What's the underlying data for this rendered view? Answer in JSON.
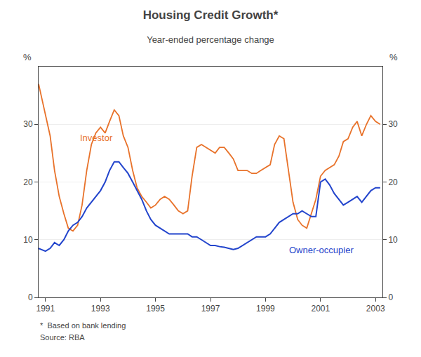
{
  "chart_data": {
    "type": "line",
    "title": "Housing Credit Growth*",
    "subtitle": "Year-ended percentage change",
    "ylabel_left": "%",
    "ylabel_right": "%",
    "footnotes": [
      "*  Based on bank lending",
      "Source: RBA"
    ],
    "x": [
      1990.75,
      1991.0,
      1991.17,
      1991.33,
      1991.5,
      1991.67,
      1991.83,
      1992.0,
      1992.17,
      1992.33,
      1992.5,
      1992.67,
      1992.83,
      1993.0,
      1993.17,
      1993.33,
      1993.5,
      1993.67,
      1993.83,
      1994.0,
      1994.17,
      1994.33,
      1994.5,
      1994.67,
      1994.83,
      1995.0,
      1995.17,
      1995.33,
      1995.5,
      1995.67,
      1995.83,
      1996.0,
      1996.17,
      1996.33,
      1996.5,
      1996.67,
      1996.83,
      1997.0,
      1997.17,
      1997.33,
      1997.5,
      1997.67,
      1997.83,
      1998.0,
      1998.17,
      1998.33,
      1998.5,
      1998.67,
      1998.83,
      1999.0,
      1999.17,
      1999.33,
      1999.5,
      1999.67,
      1999.83,
      2000.0,
      2000.17,
      2000.33,
      2000.5,
      2000.67,
      2000.83,
      2001.0,
      2001.17,
      2001.33,
      2001.5,
      2001.67,
      2001.83,
      2002.0,
      2002.17,
      2002.33,
      2002.5,
      2002.67,
      2002.83,
      2003.0,
      2003.17
    ],
    "series": [
      {
        "name": "Investor",
        "color": "#E8722A",
        "label_position": [
          1992.2,
          26.5
        ],
        "values": [
          37.0,
          31.5,
          28.0,
          22.0,
          17.5,
          14.5,
          12.0,
          11.5,
          12.5,
          16.0,
          22.0,
          26.5,
          28.5,
          29.5,
          28.5,
          30.5,
          32.5,
          31.5,
          28.0,
          26.0,
          22.0,
          19.0,
          17.5,
          16.5,
          15.5,
          16.0,
          17.0,
          17.5,
          17.0,
          16.0,
          15.0,
          14.5,
          15.0,
          21.0,
          26.0,
          26.5,
          26.0,
          25.5,
          25.0,
          26.0,
          26.0,
          25.0,
          24.0,
          22.0,
          22.0,
          22.0,
          21.5,
          21.5,
          22.0,
          22.5,
          23.0,
          26.5,
          28.0,
          27.5,
          22.0,
          16.5,
          13.5,
          12.5,
          12.0,
          14.5,
          17.0,
          21.0,
          22.0,
          22.5,
          23.0,
          24.5,
          27.0,
          27.5,
          29.5,
          30.5,
          28.0,
          30.0,
          31.5,
          30.5,
          30.0
        ]
      },
      {
        "name": "Owner-occupier",
        "color": "#2244CC",
        "label_position": [
          1999.8,
          7.0
        ],
        "values": [
          8.5,
          8.0,
          8.5,
          9.5,
          9.0,
          10.0,
          11.5,
          12.5,
          13.0,
          14.0,
          15.5,
          16.5,
          17.5,
          18.5,
          20.0,
          22.0,
          23.5,
          23.5,
          22.5,
          21.5,
          20.0,
          18.5,
          17.0,
          15.0,
          13.5,
          12.5,
          12.0,
          11.5,
          11.0,
          11.0,
          11.0,
          11.0,
          11.0,
          10.5,
          10.5,
          10.0,
          9.5,
          9.0,
          9.0,
          8.8,
          8.7,
          8.5,
          8.3,
          8.5,
          9.0,
          9.5,
          10.0,
          10.5,
          10.5,
          10.5,
          11.0,
          12.0,
          13.0,
          13.5,
          14.0,
          14.5,
          14.5,
          15.0,
          14.5,
          14.0,
          14.0,
          20.0,
          20.5,
          19.5,
          18.0,
          17.0,
          16.0,
          16.5,
          17.0,
          17.5,
          16.5,
          17.5,
          18.5,
          19.0,
          19.0
        ]
      }
    ],
    "xlim": [
      1990.75,
      2003.25
    ],
    "xticks": [
      1991,
      1993,
      1995,
      1997,
      1999,
      2001,
      2003
    ],
    "ylim": [
      0,
      40
    ],
    "yticks": [
      0,
      10,
      20,
      30
    ],
    "y2lim": [
      0,
      40
    ],
    "y2ticks": [
      0,
      10,
      20,
      30
    ],
    "grid": "y"
  }
}
